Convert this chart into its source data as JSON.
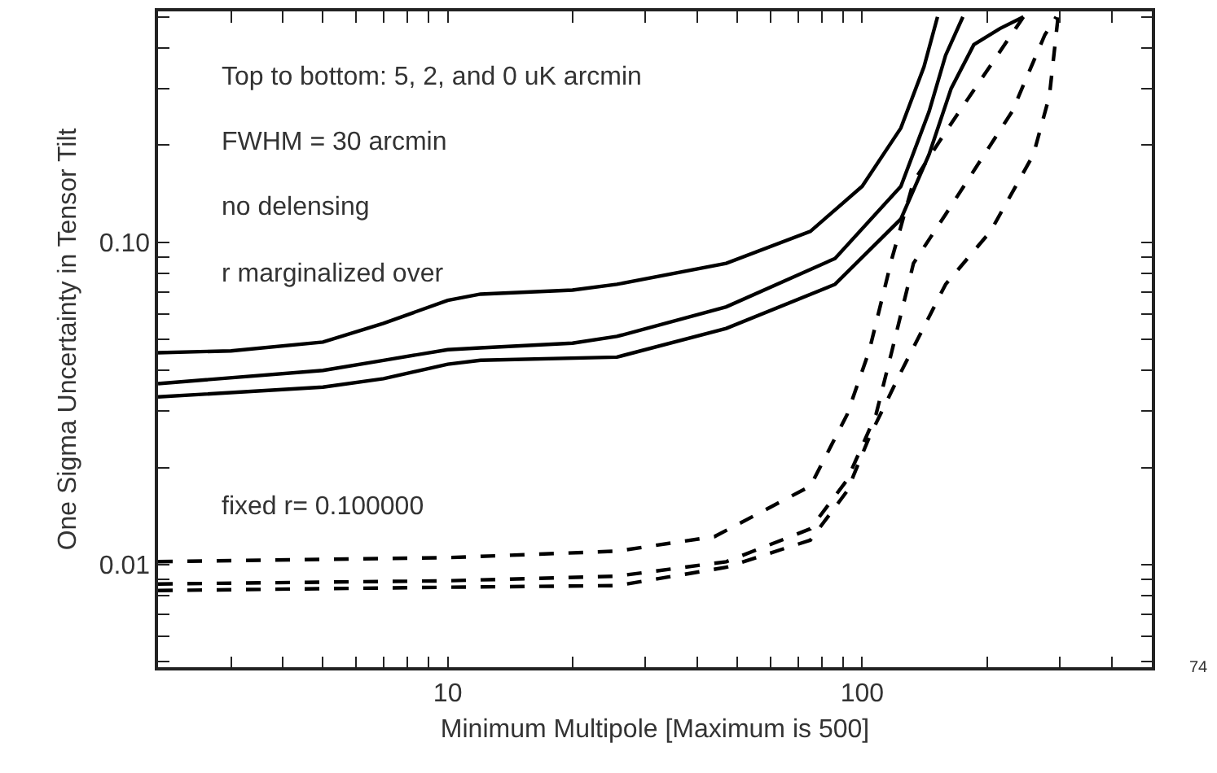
{
  "chart_data": {
    "type": "line",
    "xlabel": "Minimum Multipole [Maximum is 500]",
    "ylabel": "One Sigma Uncertainty in Tensor Tilt",
    "log": "xy",
    "grid": false,
    "xlim": [
      2,
      500
    ],
    "ylim": [
      0.0048,
      0.52
    ],
    "xticks": [
      {
        "value": 2,
        "label": null
      },
      {
        "value": 3,
        "label": null
      },
      {
        "value": 4,
        "label": null
      },
      {
        "value": 5,
        "label": null
      },
      {
        "value": 6,
        "label": null
      },
      {
        "value": 7,
        "label": null
      },
      {
        "value": 8,
        "label": null
      },
      {
        "value": 9,
        "label": null
      },
      10,
      {
        "value": 20,
        "label": null
      },
      {
        "value": 30,
        "label": null
      },
      {
        "value": 40,
        "label": null
      },
      {
        "value": 50,
        "label": null
      },
      {
        "value": 60,
        "label": null
      },
      {
        "value": 70,
        "label": null
      },
      {
        "value": 80,
        "label": null
      },
      {
        "value": 90,
        "label": null
      },
      100,
      {
        "value": 200,
        "label": null
      },
      {
        "value": 300,
        "label": null
      },
      {
        "value": 400,
        "label": null
      },
      {
        "value": 500,
        "label": null
      }
    ],
    "yticks": [
      {
        "value": 0.005,
        "label": null
      },
      {
        "value": 0.006,
        "label": null
      },
      {
        "value": 0.007,
        "label": null
      },
      {
        "value": 0.008,
        "label": null
      },
      {
        "value": 0.009,
        "label": null
      },
      0.01,
      {
        "value": 0.02,
        "label": null
      },
      {
        "value": 0.03,
        "label": null
      },
      {
        "value": 0.04,
        "label": null
      },
      {
        "value": 0.05,
        "label": null
      },
      {
        "value": 0.06,
        "label": null
      },
      {
        "value": 0.07,
        "label": null
      },
      {
        "value": 0.08,
        "label": null
      },
      {
        "value": 0.09,
        "label": null
      },
      {
        "value": 0.1,
        "label": "0.10"
      },
      {
        "value": 0.2,
        "label": null
      },
      {
        "value": 0.3,
        "label": null
      },
      {
        "value": 0.4,
        "label": null
      },
      {
        "value": 0.5,
        "label": null
      }
    ],
    "series": [
      {
        "color": "#000000",
        "line_style": "solid",
        "x": [
          2,
          3,
          5,
          7,
          10,
          12,
          20,
          25.6,
          47,
          75,
          100,
          124,
          141,
          152
        ],
        "values": [
          0.0454,
          0.046,
          0.049,
          0.056,
          0.066,
          0.069,
          0.071,
          0.074,
          0.086,
          0.108,
          0.149,
          0.226,
          0.35,
          0.5
        ]
      },
      {
        "color": "#000000",
        "line_style": "solid",
        "x": [
          2,
          5,
          7,
          10,
          12,
          20,
          25.6,
          47,
          86,
          124,
          145,
          159,
          175
        ],
        "values": [
          0.0364,
          0.04,
          0.043,
          0.0464,
          0.047,
          0.0486,
          0.051,
          0.063,
          0.089,
          0.149,
          0.254,
          0.38,
          0.5
        ]
      },
      {
        "color": "#000000",
        "line_style": "solid",
        "x": [
          2,
          5,
          7,
          10,
          12,
          25.6,
          47,
          86,
          124,
          145,
          164,
          186,
          215,
          245
        ],
        "values": [
          0.0331,
          0.0355,
          0.0377,
          0.0418,
          0.043,
          0.044,
          0.054,
          0.074,
          0.118,
          0.187,
          0.3,
          0.41,
          0.46,
          0.5
        ]
      },
      {
        "color": "#000000",
        "line_style": "dashed",
        "x": [
          2,
          10,
          25.6,
          44,
          75,
          92,
          104,
          118,
          133,
          159,
          245
        ],
        "values": [
          0.0102,
          0.0105,
          0.011,
          0.0122,
          0.0175,
          0.0292,
          0.046,
          0.089,
          0.154,
          0.22,
          0.5
        ]
      },
      {
        "color": "#000000",
        "line_style": "dashed",
        "x": [
          2,
          10,
          25.6,
          47,
          75,
          92,
          108,
          118,
          133,
          159,
          230,
          276,
          294
        ],
        "values": [
          0.0087,
          0.0089,
          0.0092,
          0.0102,
          0.0129,
          0.0183,
          0.0292,
          0.046,
          0.086,
          0.122,
          0.254,
          0.44,
          0.5
        ]
      },
      {
        "color": "#000000",
        "line_style": "dashed",
        "x": [
          2,
          10,
          25.6,
          47,
          75,
          92,
          104,
          124,
          159,
          204,
          259,
          283,
          297
        ],
        "values": [
          0.0083,
          0.0085,
          0.0086,
          0.0098,
          0.0119,
          0.0169,
          0.0248,
          0.0395,
          0.074,
          0.108,
          0.187,
          0.284,
          0.5
        ]
      }
    ],
    "annotations": [
      "Top to bottom: 5, 2, and 0 uK arcmin",
      "FWHM = 30 arcmin",
      "no delensing",
      "r marginalized over",
      "fixed r= 0.100000",
      "74"
    ]
  }
}
